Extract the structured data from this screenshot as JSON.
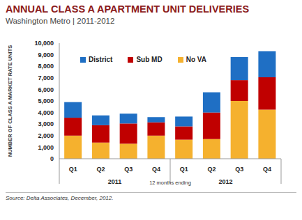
{
  "chart_data": {
    "type": "bar",
    "title": "ANNUAL CLASS A APARTMENT UNIT DELIVERIES",
    "subtitle": "Washington Metro | 2011-2012",
    "y_label": "NUMBER OF CLASS A MARKET RATE UNITS",
    "x_label": "12 months ending",
    "x_groups": [
      "2011",
      "2012"
    ],
    "source": "Source: Delta Associates, December, 2012.",
    "categories": [
      "Q1",
      "Q2",
      "Q3",
      "Q4",
      "Q1",
      "Q2",
      "Q3",
      "Q4"
    ],
    "series": [
      {
        "name": "No VA",
        "color": "#f5b12e",
        "values": [
          2000,
          1400,
          1300,
          2000,
          1650,
          1700,
          5000,
          4250
        ]
      },
      {
        "name": "Sub MD",
        "color": "#c00000",
        "values": [
          1550,
          1500,
          1750,
          1150,
          1150,
          2300,
          1800,
          2800
        ]
      },
      {
        "name": "District",
        "color": "#1f6fc4",
        "values": [
          1350,
          850,
          850,
          450,
          850,
          1750,
          2000,
          2250
        ]
      }
    ],
    "ylim": [
      0,
      10000
    ],
    "yticks": [
      0,
      {
        "value": 1000,
        "label": "1,000"
      },
      {
        "value": 2000,
        "label": "2,000"
      },
      {
        "value": 3000,
        "label": "3,000"
      },
      {
        "value": 4000,
        "label": "4,000"
      },
      {
        "value": 5000,
        "label": "5,000"
      },
      {
        "value": 6000,
        "label": "6,000"
      },
      {
        "value": 7000,
        "label": "7,000"
      },
      {
        "value": 8000,
        "label": "8,000"
      },
      {
        "value": 9000,
        "label": "9,000"
      },
      {
        "value": 10000,
        "label": "10,000"
      }
    ],
    "stacked": true,
    "grid": false,
    "legend": "upper left"
  }
}
